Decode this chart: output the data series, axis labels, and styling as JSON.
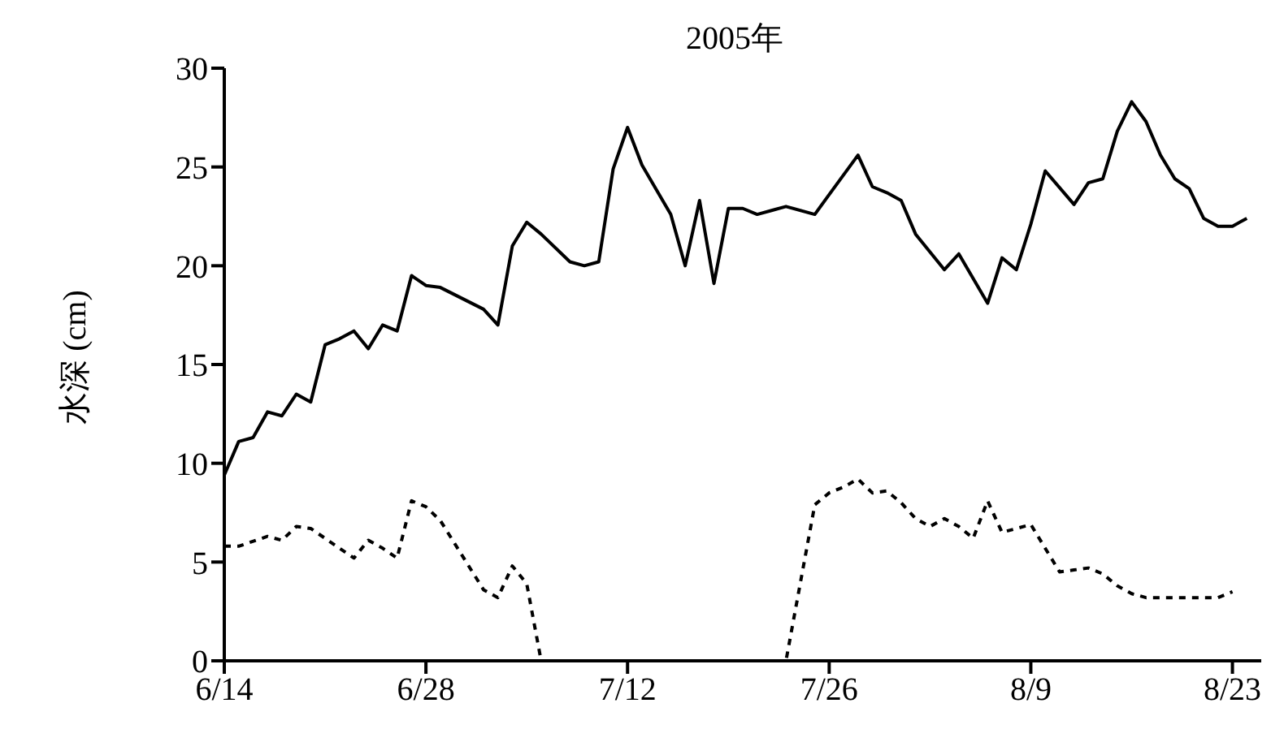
{
  "chart_data": {
    "type": "line",
    "title": "2005年",
    "ylabel": "水深 (cm)",
    "xlim": [
      "--06-14",
      "--08-25"
    ],
    "xticks": [
      {
        "value": "--06-14",
        "label": "6/14"
      },
      {
        "value": "--06-28",
        "label": "6/28"
      },
      {
        "value": "--07-12",
        "label": "7/12"
      },
      {
        "value": "--07-26",
        "label": "7/26"
      },
      {
        "value": "--08-09",
        "label": "8/9"
      },
      {
        "value": "--08-23",
        "label": "8/23"
      }
    ],
    "ylim": [
      0,
      30
    ],
    "yticks": [
      0,
      5,
      10,
      15,
      20,
      25,
      30
    ],
    "grid": false,
    "legend": false,
    "marker": "none",
    "series": [
      {
        "color": "#000000",
        "line_style": "solid",
        "x": [
          "--06-14",
          "--06-15",
          "--06-16",
          "--06-17",
          "--06-18",
          "--06-19",
          "--06-20",
          "--06-21",
          "--06-22",
          "--06-23",
          "--06-24",
          "--06-25",
          "--06-26",
          "--06-27",
          "--06-28",
          "--06-29",
          "--07-02",
          "--07-03",
          "--07-04",
          "--07-05",
          "--07-06",
          "--07-08",
          "--07-09",
          "--07-10",
          "--07-11",
          "--07-12",
          "--07-13",
          "--07-15",
          "--07-16",
          "--07-17",
          "--07-18",
          "--07-19",
          "--07-20",
          "--07-21",
          "--07-22",
          "--07-23",
          "--07-25",
          "--07-28",
          "--07-29",
          "--07-30",
          "--07-31",
          "--08-01",
          "--08-03",
          "--08-04",
          "--08-06",
          "--08-07",
          "--08-08",
          "--08-09",
          "--08-10",
          "--08-12",
          "--08-13",
          "--08-14",
          "--08-15",
          "--08-16",
          "--08-17",
          "--08-18",
          "--08-19",
          "--08-20",
          "--08-21",
          "--08-22",
          "--08-23",
          "--08-24"
        ],
        "values": [
          9.4,
          11.1,
          11.3,
          12.6,
          12.4,
          13.5,
          13.1,
          16.0,
          16.3,
          16.7,
          15.8,
          17.0,
          16.7,
          19.5,
          19.0,
          18.9,
          17.8,
          17.0,
          21.0,
          22.2,
          21.6,
          20.2,
          20.0,
          20.2,
          24.9,
          27.0,
          25.1,
          22.6,
          20.0,
          23.3,
          19.1,
          22.9,
          22.9,
          22.6,
          22.8,
          23.0,
          22.6,
          25.6,
          24.0,
          23.7,
          23.3,
          21.6,
          19.8,
          20.6,
          18.1,
          20.4,
          19.8,
          22.1,
          24.8,
          23.1,
          24.2,
          24.4,
          26.8,
          28.3,
          27.3,
          25.6,
          24.4,
          23.9,
          22.4,
          22.0,
          22.0,
          22.4
        ]
      },
      {
        "color": "#000000",
        "line_style": "dashed",
        "x": [
          "--06-14",
          "--06-15",
          "--06-17",
          "--06-18",
          "--06-19",
          "--06-20",
          "--06-21",
          "--06-23",
          "--06-24",
          "--06-25",
          "--06-26",
          "--06-27",
          "--06-28",
          "--06-29",
          "--07-02",
          "--07-03",
          "--07-04",
          "--07-05",
          "--07-06",
          "--07-23",
          "--07-25",
          "--07-26",
          "--07-27",
          "--07-28",
          "--07-29",
          "--07-30",
          "--07-31",
          "--08-01",
          "--08-02",
          "--08-03",
          "--08-04",
          "--08-05",
          "--08-06",
          "--08-07",
          "--08-08",
          "--08-09",
          "--08-11",
          "--08-12",
          "--08-13",
          "--08-14",
          "--08-15",
          "--08-16",
          "--08-17",
          "--08-22",
          "--08-23"
        ],
        "values": [
          5.8,
          5.8,
          6.3,
          6.1,
          6.8,
          6.7,
          6.2,
          5.2,
          6.1,
          5.7,
          5.2,
          8.1,
          7.8,
          7.1,
          3.6,
          3.2,
          4.8,
          3.9,
          0,
          0,
          7.9,
          8.5,
          8.8,
          9.2,
          8.5,
          8.6,
          8.0,
          7.2,
          6.8,
          7.2,
          6.8,
          6.2,
          8.1,
          6.5,
          6.7,
          6.9,
          4.5,
          4.6,
          4.7,
          4.4,
          3.8,
          3.4,
          3.2,
          3.2,
          3.5
        ]
      }
    ]
  }
}
